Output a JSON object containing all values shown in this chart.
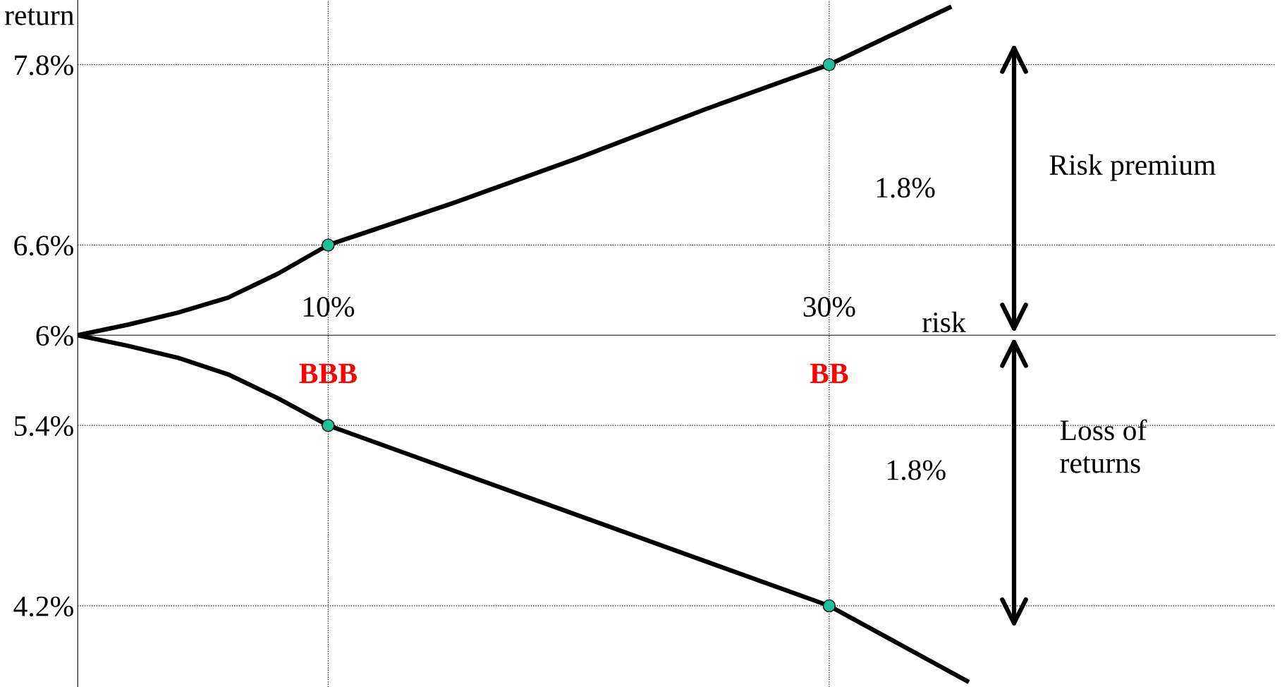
{
  "chart_data": {
    "type": "line",
    "xlabel": "risk",
    "ylabel": "return",
    "series": [
      {
        "x": [
          0,
          2,
          4,
          6,
          8,
          10,
          15,
          20,
          25,
          30,
          34.8
        ],
        "values": [
          6,
          6.07,
          6.15,
          6.25,
          6.41,
          6.6,
          6.88,
          7.18,
          7.5,
          7.8,
          8.18
        ],
        "color": "#000000"
      },
      {
        "x": [
          0,
          2,
          4,
          6,
          8,
          10,
          15,
          20,
          25,
          30,
          35.5
        ],
        "values": [
          6,
          5.93,
          5.85,
          5.74,
          5.58,
          5.4,
          5.1,
          4.8,
          4.5,
          4.2,
          3.7
        ],
        "color": "#000000"
      },
      {
        "type": "scatter",
        "marker": "circle",
        "x": [
          10,
          10,
          30,
          30
        ],
        "values": [
          6.6,
          5.4,
          7.8,
          4.2
        ],
        "color": "#1fbf9f"
      }
    ],
    "xlim": [
      0,
      47.8
    ],
    "ylim": [
      3.66,
      8.23
    ],
    "xticks": [
      {
        "value": 10,
        "label": "10%"
      },
      {
        "value": 30,
        "label": "30%"
      }
    ],
    "yticks": [
      {
        "value": 4.2,
        "label": "4.2%"
      },
      {
        "value": 5.4,
        "label": "5.4%"
      },
      {
        "value": 6,
        "label": "6%"
      },
      {
        "value": 6.6,
        "label": "6.6%"
      },
      {
        "value": 7.8,
        "label": "7.8%"
      }
    ],
    "ref_lines": [
      {
        "axis": "y",
        "value": 7.8,
        "line_style": "dotted"
      },
      {
        "axis": "y",
        "value": 6.6,
        "line_style": "dotted"
      },
      {
        "axis": "y",
        "value": 5.4,
        "line_style": "dotted"
      },
      {
        "axis": "y",
        "value": 4.2,
        "line_style": "dotted"
      },
      {
        "axis": "x",
        "value": 10,
        "line_style": "dotted"
      },
      {
        "axis": "x",
        "value": 30,
        "line_style": "dotted"
      }
    ],
    "annotations": [
      {
        "text": "BBB",
        "x": 10,
        "y": 6
      },
      {
        "text": "BB",
        "x": 30,
        "y": 6
      },
      "1.8%",
      "1.8%",
      "Risk premium",
      "Loss of\nreturns"
    ]
  }
}
